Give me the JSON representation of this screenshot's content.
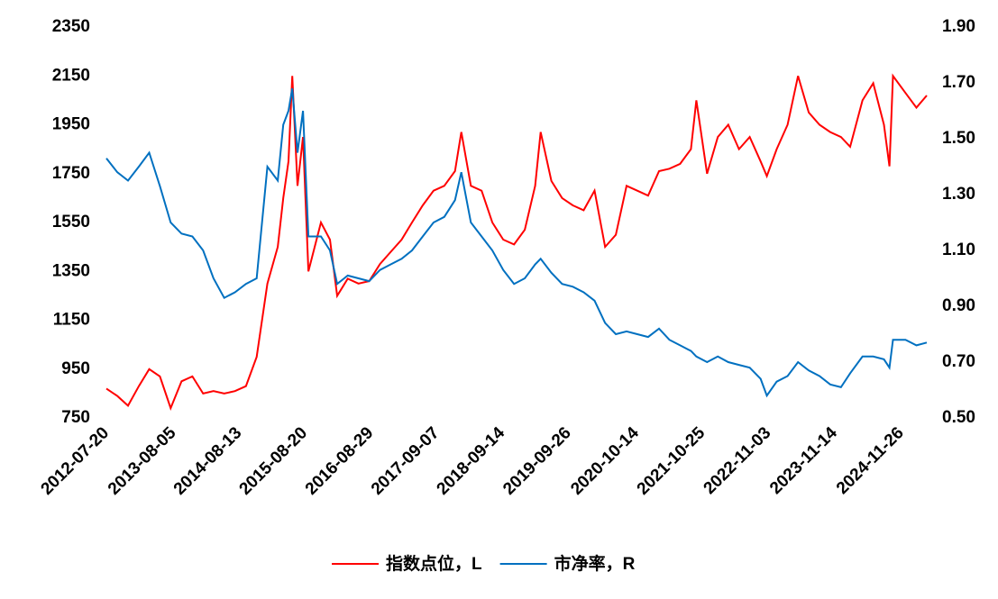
{
  "chart_data": {
    "type": "line",
    "x": [
      "2012-07-20",
      "2012-09-20",
      "2012-11-20",
      "2013-01-20",
      "2013-03-20",
      "2013-05-20",
      "2013-07-20",
      "2013-09-20",
      "2013-11-20",
      "2014-01-20",
      "2014-03-20",
      "2014-05-20",
      "2014-07-20",
      "2014-09-20",
      "2014-11-20",
      "2015-01-20",
      "2015-03-20",
      "2015-04-20",
      "2015-05-20",
      "2015-06-10",
      "2015-07-10",
      "2015-08-10",
      "2015-09-10",
      "2015-11-20",
      "2016-01-10",
      "2016-02-20",
      "2016-04-20",
      "2016-06-20",
      "2016-08-20",
      "2016-10-20",
      "2016-12-20",
      "2017-02-20",
      "2017-04-20",
      "2017-06-20",
      "2017-08-20",
      "2017-10-20",
      "2017-12-20",
      "2018-01-25",
      "2018-03-20",
      "2018-05-20",
      "2018-07-20",
      "2018-09-20",
      "2018-11-20",
      "2019-01-20",
      "2019-03-20",
      "2019-04-20",
      "2019-06-20",
      "2019-08-20",
      "2019-10-20",
      "2019-12-20",
      "2020-02-20",
      "2020-04-20",
      "2020-06-20",
      "2020-08-20",
      "2020-10-20",
      "2020-12-20",
      "2021-02-20",
      "2021-04-20",
      "2021-06-20",
      "2021-08-20",
      "2021-09-20",
      "2021-11-20",
      "2022-01-20",
      "2022-03-20",
      "2022-05-20",
      "2022-07-20",
      "2022-09-20",
      "2022-10-25",
      "2022-12-20",
      "2023-02-20",
      "2023-04-20",
      "2023-06-20",
      "2023-08-20",
      "2023-10-20",
      "2023-12-20",
      "2024-02-10",
      "2024-04-20",
      "2024-06-20",
      "2024-08-20",
      "2024-09-20",
      "2024-10-10",
      "2024-12-20",
      "2025-02-20",
      "2025-04-20"
    ],
    "series": [
      {
        "name": "指数点位，L",
        "color": "#ff0000",
        "axis": "y",
        "values": [
          870,
          840,
          800,
          880,
          950,
          920,
          790,
          900,
          920,
          850,
          860,
          850,
          860,
          880,
          1000,
          1300,
          1450,
          1650,
          1800,
          2150,
          1700,
          1900,
          1350,
          1550,
          1480,
          1250,
          1320,
          1300,
          1310,
          1380,
          1430,
          1480,
          1550,
          1620,
          1680,
          1700,
          1760,
          1920,
          1700,
          1680,
          1550,
          1480,
          1460,
          1520,
          1700,
          1920,
          1720,
          1650,
          1620,
          1600,
          1680,
          1450,
          1500,
          1700,
          1680,
          1660,
          1760,
          1770,
          1790,
          1850,
          2050,
          1750,
          1900,
          1950,
          1850,
          1900,
          1800,
          1740,
          1850,
          1950,
          2150,
          2000,
          1950,
          1920,
          1900,
          1860,
          2050,
          2120,
          1950,
          1780,
          2150,
          2080,
          2020,
          2070
        ]
      },
      {
        "name": "市净率，R",
        "color": "#0070c0",
        "axis": "y2",
        "values": [
          1.43,
          1.38,
          1.35,
          1.4,
          1.45,
          1.33,
          1.2,
          1.16,
          1.15,
          1.1,
          1.0,
          0.93,
          0.95,
          0.98,
          1.0,
          1.4,
          1.35,
          1.55,
          1.6,
          1.68,
          1.45,
          1.6,
          1.15,
          1.15,
          1.1,
          0.98,
          1.01,
          1.0,
          0.99,
          1.03,
          1.05,
          1.07,
          1.1,
          1.15,
          1.2,
          1.22,
          1.28,
          1.38,
          1.2,
          1.15,
          1.1,
          1.03,
          0.98,
          1.0,
          1.05,
          1.07,
          1.02,
          0.98,
          0.97,
          0.95,
          0.92,
          0.84,
          0.8,
          0.81,
          0.8,
          0.79,
          0.82,
          0.78,
          0.76,
          0.74,
          0.72,
          0.7,
          0.72,
          0.7,
          0.69,
          0.68,
          0.64,
          0.58,
          0.63,
          0.65,
          0.7,
          0.67,
          0.65,
          0.62,
          0.61,
          0.66,
          0.72,
          0.72,
          0.71,
          0.68,
          0.78,
          0.78,
          0.76,
          0.77
        ]
      }
    ],
    "xlim": [
      "2012-07-20",
      "2025-04-20"
    ],
    "xticks": [
      "2012-07-20",
      "2013-08-05",
      "2014-08-13",
      "2015-08-20",
      "2016-08-29",
      "2017-09-07",
      "2018-09-14",
      "2019-09-26",
      "2020-10-14",
      "2021-10-25",
      "2022-11-03",
      "2023-11-14",
      "2024-11-26"
    ],
    "ylim": [
      750,
      2350
    ],
    "yticks": [
      750,
      950,
      1150,
      1350,
      1550,
      1750,
      1950,
      2150,
      2350
    ],
    "y2lim": [
      0.5,
      1.9
    ],
    "y2ticks": [
      {
        "value": 0.5,
        "label": "0.50"
      },
      {
        "value": 0.7,
        "label": "0.70"
      },
      {
        "value": 0.9,
        "label": "0.90"
      },
      {
        "value": 1.1,
        "label": "1.10"
      },
      {
        "value": 1.3,
        "label": "1.30"
      },
      {
        "value": 1.5,
        "label": "1.50"
      },
      {
        "value": 1.7,
        "label": "1.70"
      },
      {
        "value": 1.9,
        "label": "1.90"
      }
    ],
    "legend": "bottom"
  }
}
